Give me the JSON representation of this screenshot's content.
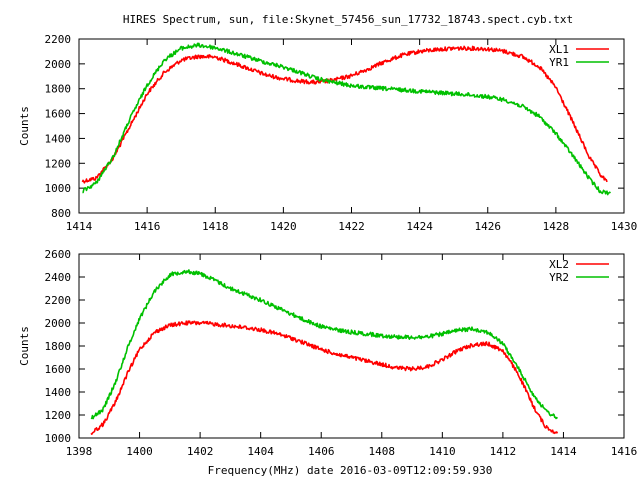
{
  "title": "HIRES Spectrum, sun, file:Skynet_57456_sun_17732_18743.spect.cyb.txt",
  "xlabel_common": "Frequency(MHz) date 2016-03-09T12:09:59.930",
  "chart_data": [
    {
      "type": "line",
      "ylabel": "Counts",
      "xlim": [
        1414,
        1430
      ],
      "ylim": [
        800,
        2200
      ],
      "xticks": [
        1414,
        1416,
        1418,
        1420,
        1422,
        1424,
        1426,
        1428,
        1430
      ],
      "yticks": [
        800,
        1000,
        1200,
        1400,
        1600,
        1800,
        2000,
        2200
      ],
      "legend_position": "top-right",
      "grid": false,
      "series": [
        {
          "name": "XL1",
          "color": "#ff0000",
          "points": [
            [
              1414.1,
              1055
            ],
            [
              1414.5,
              1080
            ],
            [
              1415.0,
              1240
            ],
            [
              1415.5,
              1500
            ],
            [
              1416.0,
              1760
            ],
            [
              1416.5,
              1930
            ],
            [
              1417.0,
              2030
            ],
            [
              1417.5,
              2060
            ],
            [
              1418.0,
              2055
            ],
            [
              1418.5,
              2010
            ],
            [
              1419.0,
              1960
            ],
            [
              1419.5,
              1910
            ],
            [
              1420.0,
              1880
            ],
            [
              1420.5,
              1860
            ],
            [
              1421.0,
              1850
            ],
            [
              1421.5,
              1870
            ],
            [
              1422.0,
              1905
            ],
            [
              1422.5,
              1960
            ],
            [
              1423.0,
              2020
            ],
            [
              1423.5,
              2070
            ],
            [
              1424.0,
              2100
            ],
            [
              1424.5,
              2115
            ],
            [
              1425.0,
              2125
            ],
            [
              1425.5,
              2125
            ],
            [
              1426.0,
              2120
            ],
            [
              1426.5,
              2100
            ],
            [
              1427.0,
              2060
            ],
            [
              1427.5,
              1980
            ],
            [
              1428.0,
              1810
            ],
            [
              1428.5,
              1530
            ],
            [
              1429.0,
              1240
            ],
            [
              1429.3,
              1110
            ],
            [
              1429.5,
              1050
            ]
          ]
        },
        {
          "name": "YR1",
          "color": "#00c000",
          "points": [
            [
              1414.1,
              975
            ],
            [
              1414.5,
              1040
            ],
            [
              1415.0,
              1250
            ],
            [
              1415.5,
              1560
            ],
            [
              1416.0,
              1830
            ],
            [
              1416.5,
              2030
            ],
            [
              1417.0,
              2125
            ],
            [
              1417.5,
              2150
            ],
            [
              1418.0,
              2130
            ],
            [
              1418.5,
              2090
            ],
            [
              1419.0,
              2050
            ],
            [
              1419.5,
              2010
            ],
            [
              1420.0,
              1975
            ],
            [
              1420.5,
              1930
            ],
            [
              1421.0,
              1880
            ],
            [
              1421.5,
              1850
            ],
            [
              1422.0,
              1825
            ],
            [
              1422.5,
              1810
            ],
            [
              1423.0,
              1800
            ],
            [
              1423.5,
              1790
            ],
            [
              1424.0,
              1780
            ],
            [
              1424.5,
              1770
            ],
            [
              1425.0,
              1760
            ],
            [
              1425.5,
              1750
            ],
            [
              1426.0,
              1735
            ],
            [
              1426.5,
              1710
            ],
            [
              1427.0,
              1660
            ],
            [
              1427.5,
              1580
            ],
            [
              1428.0,
              1440
            ],
            [
              1428.5,
              1260
            ],
            [
              1429.0,
              1070
            ],
            [
              1429.3,
              975
            ],
            [
              1429.6,
              960
            ]
          ]
        }
      ]
    },
    {
      "type": "line",
      "ylabel": "Counts",
      "xlabel": "Frequency(MHz) date 2016-03-09T12:09:59.930",
      "xlim": [
        1398,
        1416
      ],
      "ylim": [
        1000,
        2600
      ],
      "xticks": [
        1398,
        1400,
        1402,
        1404,
        1406,
        1408,
        1410,
        1412,
        1414,
        1416
      ],
      "yticks": [
        1000,
        1200,
        1400,
        1600,
        1800,
        2000,
        2200,
        2400,
        2600
      ],
      "legend_position": "top-right",
      "grid": false,
      "series": [
        {
          "name": "XL2",
          "color": "#ff0000",
          "points": [
            [
              1398.4,
              1040
            ],
            [
              1398.8,
              1120
            ],
            [
              1399.2,
              1310
            ],
            [
              1399.6,
              1560
            ],
            [
              1400.0,
              1770
            ],
            [
              1400.5,
              1920
            ],
            [
              1401.0,
              1980
            ],
            [
              1401.5,
              2000
            ],
            [
              1402.0,
              2000
            ],
            [
              1402.5,
              1990
            ],
            [
              1403.0,
              1975
            ],
            [
              1403.5,
              1960
            ],
            [
              1404.0,
              1940
            ],
            [
              1404.5,
              1910
            ],
            [
              1405.0,
              1870
            ],
            [
              1405.5,
              1820
            ],
            [
              1406.0,
              1770
            ],
            [
              1406.5,
              1730
            ],
            [
              1407.0,
              1700
            ],
            [
              1407.5,
              1670
            ],
            [
              1408.0,
              1640
            ],
            [
              1408.5,
              1610
            ],
            [
              1409.0,
              1600
            ],
            [
              1409.5,
              1620
            ],
            [
              1410.0,
              1680
            ],
            [
              1410.5,
              1760
            ],
            [
              1411.0,
              1810
            ],
            [
              1411.5,
              1820
            ],
            [
              1412.0,
              1760
            ],
            [
              1412.5,
              1560
            ],
            [
              1413.0,
              1280
            ],
            [
              1413.4,
              1100
            ],
            [
              1413.8,
              1040
            ]
          ]
        },
        {
          "name": "YR2",
          "color": "#00c000",
          "points": [
            [
              1398.4,
              1170
            ],
            [
              1398.8,
              1250
            ],
            [
              1399.2,
              1480
            ],
            [
              1399.6,
              1780
            ],
            [
              1400.0,
              2040
            ],
            [
              1400.5,
              2280
            ],
            [
              1401.0,
              2420
            ],
            [
              1401.5,
              2450
            ],
            [
              1402.0,
              2430
            ],
            [
              1402.5,
              2370
            ],
            [
              1403.0,
              2300
            ],
            [
              1403.5,
              2250
            ],
            [
              1404.0,
              2200
            ],
            [
              1404.5,
              2140
            ],
            [
              1405.0,
              2080
            ],
            [
              1405.5,
              2020
            ],
            [
              1406.0,
              1970
            ],
            [
              1406.5,
              1940
            ],
            [
              1407.0,
              1920
            ],
            [
              1407.5,
              1905
            ],
            [
              1408.0,
              1890
            ],
            [
              1408.5,
              1880
            ],
            [
              1409.0,
              1875
            ],
            [
              1409.5,
              1880
            ],
            [
              1410.0,
              1905
            ],
            [
              1410.5,
              1935
            ],
            [
              1411.0,
              1950
            ],
            [
              1411.5,
              1920
            ],
            [
              1412.0,
              1820
            ],
            [
              1412.5,
              1610
            ],
            [
              1413.0,
              1380
            ],
            [
              1413.4,
              1240
            ],
            [
              1413.8,
              1170
            ]
          ]
        }
      ]
    }
  ]
}
